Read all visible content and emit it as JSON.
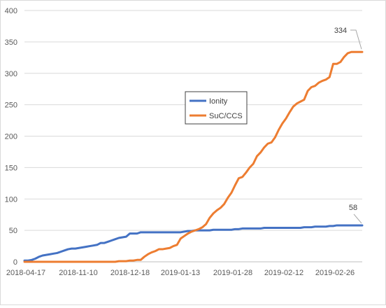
{
  "chart_data": {
    "type": "line",
    "title": "",
    "xlabel": "",
    "ylabel": "",
    "ylim": [
      0,
      400
    ],
    "yticks": [
      0,
      50,
      100,
      150,
      200,
      250,
      300,
      350,
      400
    ],
    "x_tick_labels": [
      "2018-04-17",
      "2018-11-10",
      "2018-12-18",
      "2019-01-13",
      "2019-01-28",
      "2019-02-12",
      "2019-02-26"
    ],
    "grid": "horizontal",
    "legend_position": "center",
    "series": [
      {
        "name": "Ionity",
        "color": "#4472c4",
        "end_label": "58",
        "values": [
          2,
          2,
          3,
          5,
          8,
          10,
          11,
          12,
          13,
          14,
          16,
          18,
          20,
          21,
          21,
          22,
          23,
          24,
          25,
          26,
          27,
          30,
          30,
          32,
          34,
          36,
          38,
          39,
          40,
          45,
          45,
          45,
          47,
          47,
          47,
          47,
          47,
          47,
          47,
          47,
          47,
          47,
          47,
          47,
          48,
          49,
          49,
          50,
          50,
          50,
          50,
          50,
          51,
          51,
          51,
          51,
          51,
          51,
          52,
          52,
          53,
          53,
          53,
          53,
          53,
          53,
          54,
          54,
          54,
          54,
          54,
          54,
          54,
          54,
          54,
          54,
          54,
          55,
          55,
          55,
          56,
          56,
          56,
          56,
          57,
          57,
          58,
          58,
          58,
          58,
          58,
          58,
          58,
          58
        ]
      },
      {
        "name": "SuC/CCS",
        "color": "#ed7d31",
        "end_label": "334",
        "values": [
          0,
          0,
          0,
          0,
          0,
          0,
          0,
          0,
          0,
          0,
          0,
          0,
          0,
          0,
          0,
          0,
          0,
          0,
          0,
          0,
          0,
          0,
          0,
          0,
          0,
          0,
          1,
          1,
          1,
          2,
          2,
          3,
          3,
          8,
          12,
          15,
          17,
          20,
          20,
          21,
          22,
          25,
          27,
          37,
          41,
          45,
          48,
          50,
          52,
          55,
          60,
          70,
          77,
          82,
          86,
          92,
          102,
          110,
          122,
          133,
          135,
          142,
          150,
          156,
          168,
          174,
          182,
          188,
          190,
          198,
          210,
          220,
          228,
          238,
          247,
          252,
          255,
          258,
          272,
          278,
          280,
          285,
          288,
          290,
          294,
          315,
          315,
          318,
          326,
          332,
          334,
          334,
          334,
          334
        ]
      }
    ]
  }
}
